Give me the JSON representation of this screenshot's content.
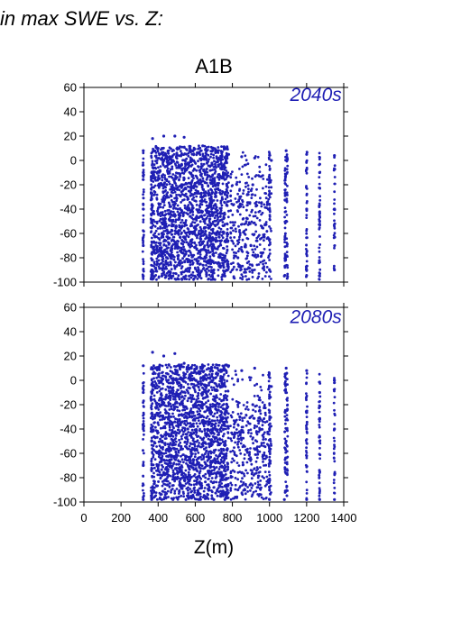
{
  "header": {
    "text": "in max SWE vs. Z:"
  },
  "colors": {
    "points": "#1f1fb4",
    "axis": "#000000"
  },
  "chart_data": [
    {
      "type": "scatter",
      "title": "A1B",
      "annotation": "2040s",
      "xlabel": "",
      "ylabel": "",
      "xlim": [
        0,
        1400
      ],
      "ylim": [
        -100,
        60
      ],
      "x_ticks": [
        0,
        200,
        400,
        600,
        800,
        1000,
        1200,
        1400
      ],
      "y_ticks": [
        60,
        40,
        20,
        0,
        -20,
        -40,
        -60,
        -80,
        -100
      ],
      "y_tick_labels": [
        "60",
        "40",
        "20",
        "0",
        "-20",
        "-40",
        "-60",
        "-80",
        "-100"
      ],
      "series": [
        {
          "points": [
            [
              320,
              -95
            ],
            [
              320,
              -70
            ],
            [
              320,
              -40
            ],
            [
              320,
              -10
            ],
            [
              320,
              8
            ],
            [
              365,
              -90
            ],
            [
              365,
              -50
            ],
            [
              365,
              -10
            ],
            [
              370,
              18
            ],
            [
              420,
              -95
            ],
            [
              420,
              -60
            ],
            [
              420,
              -20
            ],
            [
              430,
              20
            ],
            [
              480,
              -95
            ],
            [
              480,
              -50
            ],
            [
              480,
              0
            ],
            [
              490,
              20
            ],
            [
              550,
              -90
            ],
            [
              560,
              -40
            ],
            [
              570,
              10
            ],
            [
              540,
              19
            ],
            [
              620,
              -95
            ],
            [
              630,
              -30
            ],
            [
              640,
              12
            ],
            [
              700,
              -90
            ],
            [
              710,
              -40
            ],
            [
              720,
              8
            ],
            [
              760,
              -95
            ],
            [
              770,
              -20
            ],
            [
              780,
              5
            ],
            [
              830,
              -80
            ],
            [
              840,
              -30
            ],
            [
              850,
              3
            ],
            [
              900,
              -70
            ],
            [
              910,
              -20
            ],
            [
              920,
              2
            ],
            [
              1000,
              -90
            ],
            [
              1000,
              -40
            ],
            [
              1010,
              0
            ],
            [
              1080,
              -95
            ],
            [
              1090,
              -50
            ],
            [
              1090,
              8
            ],
            [
              1200,
              -90
            ],
            [
              1200,
              -40
            ],
            [
              1200,
              5
            ],
            [
              1270,
              -95
            ],
            [
              1270,
              -50
            ],
            [
              1270,
              -10
            ],
            [
              1350,
              -90
            ],
            [
              1350,
              -40
            ],
            [
              1350,
              4
            ]
          ]
        }
      ]
    },
    {
      "type": "scatter",
      "title": "",
      "annotation": "2080s",
      "xlabel": "Z(m)",
      "ylabel": "",
      "xlim": [
        0,
        1400
      ],
      "ylim": [
        -100,
        60
      ],
      "x_ticks": [
        0,
        200,
        400,
        600,
        800,
        1000,
        1200,
        1400
      ],
      "x_tick_labels": [
        "0",
        "200",
        "400",
        "600",
        "800",
        "1000",
        "1200",
        "1400"
      ],
      "y_ticks": [
        60,
        40,
        20,
        0,
        -20,
        -40,
        -60,
        -80,
        -100
      ],
      "y_tick_labels": [
        "60",
        "40",
        "20",
        "0",
        "-20",
        "-40",
        "-60",
        "-80",
        "-100"
      ],
      "series": [
        {
          "points": [
            [
              320,
              -98
            ],
            [
              320,
              -70
            ],
            [
              320,
              -40
            ],
            [
              320,
              -10
            ],
            [
              320,
              12
            ],
            [
              365,
              -98
            ],
            [
              365,
              -50
            ],
            [
              365,
              -10
            ],
            [
              370,
              23
            ],
            [
              420,
              -98
            ],
            [
              420,
              -60
            ],
            [
              420,
              -20
            ],
            [
              430,
              20
            ],
            [
              480,
              -98
            ],
            [
              480,
              -50
            ],
            [
              480,
              0
            ],
            [
              490,
              22
            ],
            [
              550,
              -98
            ],
            [
              560,
              -40
            ],
            [
              570,
              10
            ],
            [
              540,
              14
            ],
            [
              620,
              -98
            ],
            [
              630,
              -30
            ],
            [
              640,
              12
            ],
            [
              700,
              -98
            ],
            [
              710,
              -40
            ],
            [
              720,
              10
            ],
            [
              760,
              -98
            ],
            [
              770,
              -20
            ],
            [
              780,
              12
            ],
            [
              830,
              -90
            ],
            [
              840,
              -30
            ],
            [
              850,
              8
            ],
            [
              900,
              -85
            ],
            [
              910,
              -20
            ],
            [
              920,
              10
            ],
            [
              1000,
              -98
            ],
            [
              1000,
              -40
            ],
            [
              1010,
              -5
            ],
            [
              1080,
              -98
            ],
            [
              1090,
              -50
            ],
            [
              1090,
              10
            ],
            [
              1200,
              -98
            ],
            [
              1200,
              -40
            ],
            [
              1200,
              8
            ],
            [
              1270,
              -98
            ],
            [
              1270,
              -50
            ],
            [
              1270,
              -10
            ],
            [
              1350,
              -98
            ],
            [
              1350,
              -40
            ],
            [
              1350,
              0
            ]
          ]
        }
      ]
    }
  ]
}
